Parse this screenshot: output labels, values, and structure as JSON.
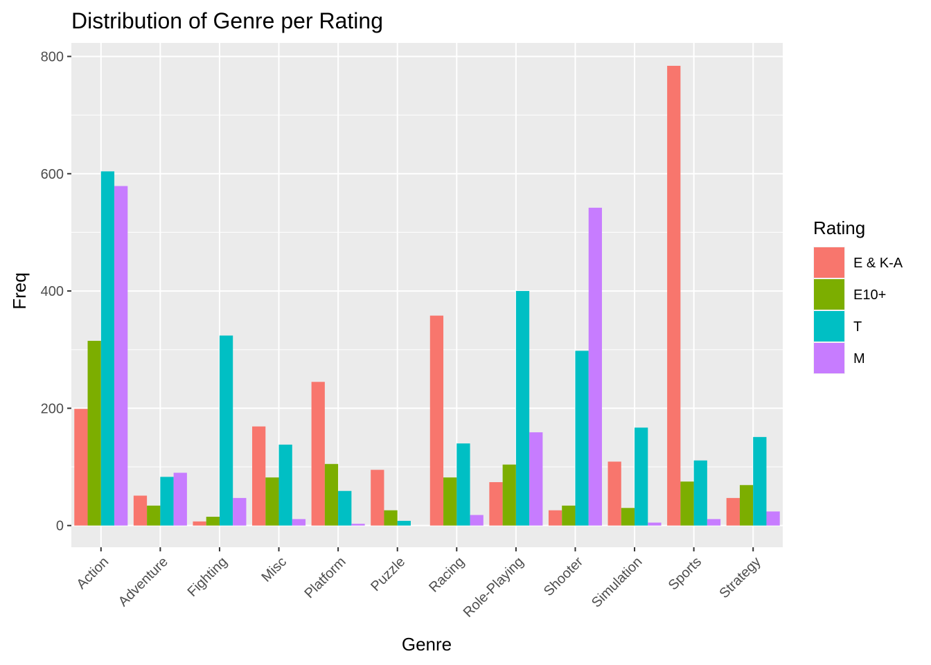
{
  "chart_data": {
    "type": "bar",
    "title": "Distribution of Genre per Rating",
    "xlabel": "Genre",
    "ylabel": "Freq",
    "categories": [
      "Action",
      "Adventure",
      "Fighting",
      "Misc",
      "Platform",
      "Puzzle",
      "Racing",
      "Role-Playing",
      "Shooter",
      "Simulation",
      "Sports",
      "Strategy"
    ],
    "series": [
      {
        "name": "E & K-A",
        "color": "#F8766D",
        "values": [
          199,
          51,
          7,
          169,
          245,
          95,
          358,
          74,
          26,
          109,
          784,
          47
        ]
      },
      {
        "name": "E10+",
        "color": "#7CAE00",
        "values": [
          315,
          34,
          15,
          82,
          105,
          26,
          82,
          104,
          34,
          30,
          75,
          69
        ]
      },
      {
        "name": "T",
        "color": "#00BFC4",
        "values": [
          604,
          83,
          324,
          138,
          59,
          8,
          140,
          400,
          298,
          167,
          111,
          151
        ]
      },
      {
        "name": "M",
        "color": "#C77CFF",
        "values": [
          579,
          90,
          47,
          11,
          3,
          0,
          18,
          159,
          542,
          5,
          11,
          24
        ]
      }
    ],
    "ylim": [
      -37,
      823
    ],
    "yticks": [
      0,
      200,
      400,
      600,
      800
    ],
    "grid": true,
    "panel_background": "#EBEBEB",
    "legend": {
      "title": "Rating",
      "position": "right"
    }
  }
}
